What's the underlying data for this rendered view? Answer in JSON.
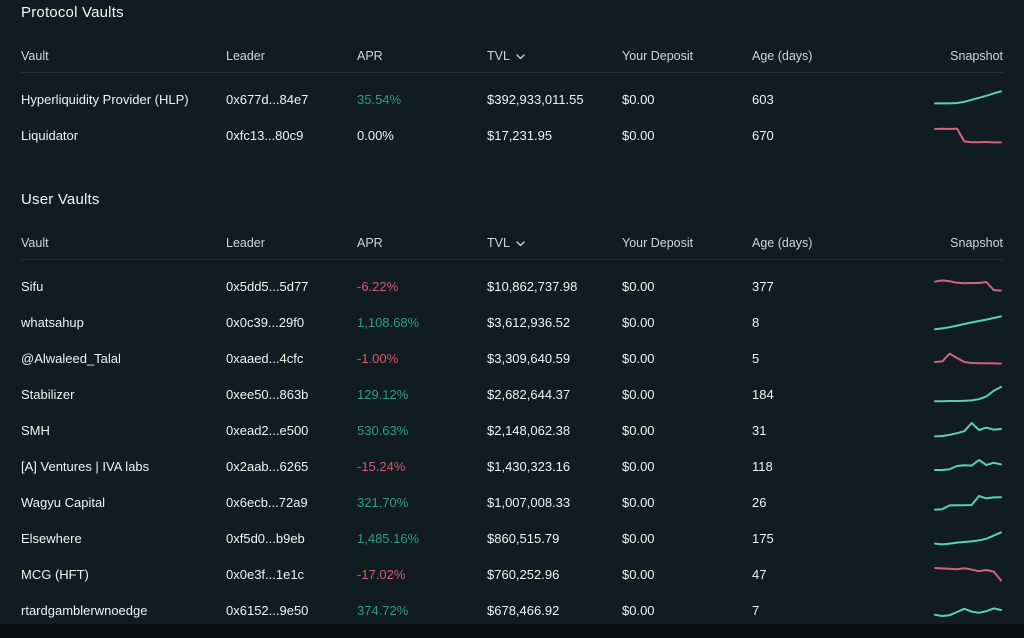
{
  "colors": {
    "panel_background": "#101b22",
    "page_bottom": "#0a0d10",
    "text_primary": "#eef3f4",
    "text_header": "#cdd7d9",
    "apr_positive": "#2f9e80",
    "apr_negative": "#d05c6e",
    "spark_positive": "#57cfba",
    "spark_negative": "#d2647a",
    "divider": "#242f36"
  },
  "table": {
    "columns": [
      "Vault",
      "Leader",
      "APR",
      "TVL",
      "Your Deposit",
      "Age (days)",
      "Snapshot"
    ],
    "sort_column": "TVL",
    "sort_icon": "chevron-down"
  },
  "sections": [
    {
      "title": "Protocol Vaults",
      "rows": [
        {
          "vault": "Hyperliquidity Provider (HLP)",
          "leader": "0x677d...84e7",
          "apr": "35.54%",
          "apr_trend": "pos",
          "tvl": "$392,933,011.55",
          "deposit": "$0.00",
          "age": "603",
          "snapshot": {
            "trend": "pos",
            "points": [
              0.28,
              0.28,
              0.28,
              0.3,
              0.36,
              0.46,
              0.56,
              0.66,
              0.78,
              0.88
            ]
          }
        },
        {
          "vault": "Liquidator",
          "leader": "0xfc13...80c9",
          "apr": "0.00%",
          "apr_trend": "neutral",
          "tvl": "$17,231.95",
          "deposit": "$0.00",
          "age": "670",
          "snapshot": {
            "trend": "neg",
            "points": [
              0.8,
              0.81,
              0.8,
              0.82,
              0.18,
              0.14,
              0.14,
              0.15,
              0.13,
              0.13
            ]
          }
        }
      ]
    },
    {
      "title": "User Vaults",
      "rows": [
        {
          "vault": "Sifu",
          "leader": "0x5dd5...5d77",
          "apr": "-6.22%",
          "apr_trend": "neg",
          "tvl": "$10,862,737.98",
          "deposit": "$0.00",
          "age": "377",
          "snapshot": {
            "trend": "neg",
            "points": [
              0.72,
              0.78,
              0.74,
              0.66,
              0.64,
              0.65,
              0.65,
              0.7,
              0.3,
              0.27
            ]
          }
        },
        {
          "vault": "whatsahup",
          "leader": "0x0c39...29f0",
          "apr": "1,108.68%",
          "apr_trend": "pos",
          "tvl": "$3,612,936.52",
          "deposit": "$0.00",
          "age": "8",
          "snapshot": {
            "trend": "pos",
            "points": [
              0.14,
              0.18,
              0.24,
              0.32,
              0.4,
              0.48,
              0.55,
              0.62,
              0.7,
              0.78
            ]
          }
        },
        {
          "vault": "@Alwaleed_Talal",
          "leader": "0xaaed...4cfc",
          "apr": "-1.00%",
          "apr_trend": "neg",
          "tvl": "$3,309,640.59",
          "deposit": "$0.00",
          "age": "5",
          "snapshot": {
            "trend": "neg",
            "points": [
              0.3,
              0.33,
              0.72,
              0.5,
              0.3,
              0.25,
              0.24,
              0.24,
              0.23,
              0.22
            ]
          }
        },
        {
          "vault": "Stabilizer",
          "leader": "0xee50...863b",
          "apr": "129.12%",
          "apr_trend": "pos",
          "tvl": "$2,682,644.37",
          "deposit": "$0.00",
          "age": "184",
          "snapshot": {
            "trend": "pos",
            "points": [
              0.14,
              0.14,
              0.15,
              0.15,
              0.16,
              0.18,
              0.24,
              0.38,
              0.66,
              0.85
            ]
          }
        },
        {
          "vault": "SMH",
          "leader": "0xead2...e500",
          "apr": "530.63%",
          "apr_trend": "pos",
          "tvl": "$2,148,062.38",
          "deposit": "$0.00",
          "age": "31",
          "snapshot": {
            "trend": "pos",
            "points": [
              0.18,
              0.2,
              0.26,
              0.34,
              0.44,
              0.85,
              0.5,
              0.62,
              0.52,
              0.55
            ]
          }
        },
        {
          "vault": "[A] Ventures | IVA labs",
          "leader": "0x2aab...6265",
          "apr": "-15.24%",
          "apr_trend": "neg",
          "tvl": "$1,430,323.16",
          "deposit": "$0.00",
          "age": "118",
          "snapshot": {
            "trend": "pos",
            "points": [
              0.3,
              0.3,
              0.34,
              0.5,
              0.54,
              0.52,
              0.8,
              0.55,
              0.66,
              0.58
            ]
          }
        },
        {
          "vault": "Wagyu Capital",
          "leader": "0x6ecb...72a9",
          "apr": "321.70%",
          "apr_trend": "pos",
          "tvl": "$1,007,008.33",
          "deposit": "$0.00",
          "age": "26",
          "snapshot": {
            "trend": "pos",
            "points": [
              0.12,
              0.14,
              0.33,
              0.34,
              0.34,
              0.35,
              0.8,
              0.68,
              0.73,
              0.74
            ]
          }
        },
        {
          "vault": "Elsewhere",
          "leader": "0xf5d0...b9eb",
          "apr": "1,485.16%",
          "apr_trend": "pos",
          "tvl": "$860,515.79",
          "deposit": "$0.00",
          "age": "175",
          "snapshot": {
            "trend": "pos",
            "points": [
              0.22,
              0.18,
              0.22,
              0.27,
              0.3,
              0.33,
              0.38,
              0.46,
              0.62,
              0.78
            ]
          }
        },
        {
          "vault": "MCG (HFT)",
          "leader": "0x0e3f...1e1c",
          "apr": "-17.02%",
          "apr_trend": "neg",
          "tvl": "$760,252.96",
          "deposit": "$0.00",
          "age": "47",
          "snapshot": {
            "trend": "neg",
            "points": [
              0.8,
              0.78,
              0.76,
              0.74,
              0.79,
              0.72,
              0.64,
              0.7,
              0.62,
              0.18
            ]
          }
        },
        {
          "vault": "rtardgamblerwnoedge",
          "leader": "0x6152...9e50",
          "apr": "374.72%",
          "apr_trend": "pos",
          "tvl": "$678,466.92",
          "deposit": "$0.00",
          "age": "7",
          "snapshot": {
            "trend": "pos",
            "points": [
              0.26,
              0.2,
              0.24,
              0.4,
              0.56,
              0.42,
              0.36,
              0.44,
              0.58,
              0.5
            ]
          }
        }
      ]
    }
  ]
}
